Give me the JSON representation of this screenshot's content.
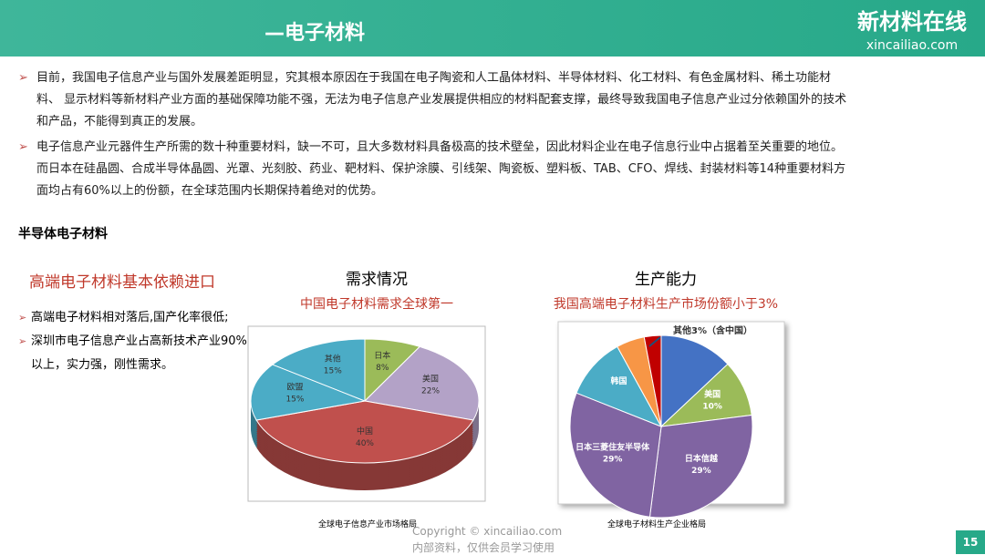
{
  "header": {
    "title": "—电子材料",
    "logo": "新材料在线",
    "logo_url": "xincailiao.com"
  },
  "bullets": [
    "目前，我国电子信息产业与国外发展差距明显，究其根本原因在于我国在电子陶瓷和人工晶体材料、半导体材料、化工材料、有色金属材料、稀土功能材料、 显示材料等新材料产业方面的基础保障功能不强，无法为电子信息产业发展提供相应的材料配套支撑，最终导致我国电子信息产业过分依赖国外的技术和产品，不能得到真正的发展。",
    "电子信息产业元器件生产所需的数十种重要材料，缺一不可，且大多数材料具备极高的技术壁垒，因此材料企业在电子信息行业中占据着至关重要的地位。而日本在硅晶圆、合成半导体晶圆、光罩、光刻胶、药业、靶材料、保护涂膜、引线架、陶瓷板、塑料板、TAB、CFO、焊线、封装材料等14种重要材料方面均占有60%以上的份额，在全球范围内长期保持着绝对的优势。"
  ],
  "section_title": "半导体电子材料",
  "side": {
    "title": "高端电子材料基本依赖进口",
    "points": [
      "高端电子材料相对落后,国产化率很低;",
      "深圳市电子信息产业占高新技术产业90%以上，实力强，刚性需求。"
    ]
  },
  "charts": [
    {
      "type": "pie",
      "title": "需求情况",
      "subtitle": "中国电子材料需求全球第一",
      "caption": "全球电子信息产业市场格局",
      "categories": [
        "日本",
        "美国",
        "中国",
        "欧盟",
        "其他"
      ],
      "values": [
        8,
        22,
        40,
        15,
        15
      ],
      "value_labels": [
        "8%",
        "22%",
        "40%",
        "15%",
        "15%"
      ],
      "colors": [
        "#9bbb59",
        "#b3a2c7",
        "#c0504d",
        "#4bacc6",
        "#4bacc6"
      ]
    },
    {
      "type": "pie",
      "title": "生产能力",
      "subtitle": "我国高端电子材料生产市场份额小于3%",
      "caption": "全球电子材料生产企业格局",
      "annotation": "其他3%（含中国）",
      "categories": [
        null,
        "美国",
        "日本信越",
        "日本三菱住友半导体",
        "韩国",
        null,
        null
      ],
      "values": [
        13,
        10,
        29,
        29,
        11,
        5,
        3
      ],
      "value_labels": [
        null,
        "10%",
        "29%",
        "29%",
        null,
        null,
        null
      ],
      "colors": [
        "#4472c4",
        "#9bbb59",
        "#8064a2",
        "#8064a2",
        "#4bacc6",
        "#f79646",
        "#c00000"
      ]
    }
  ],
  "footer": {
    "copyright": "Copyright © xincailiao.com",
    "note": "内部资料，仅供会员学习使用",
    "page": "15"
  }
}
